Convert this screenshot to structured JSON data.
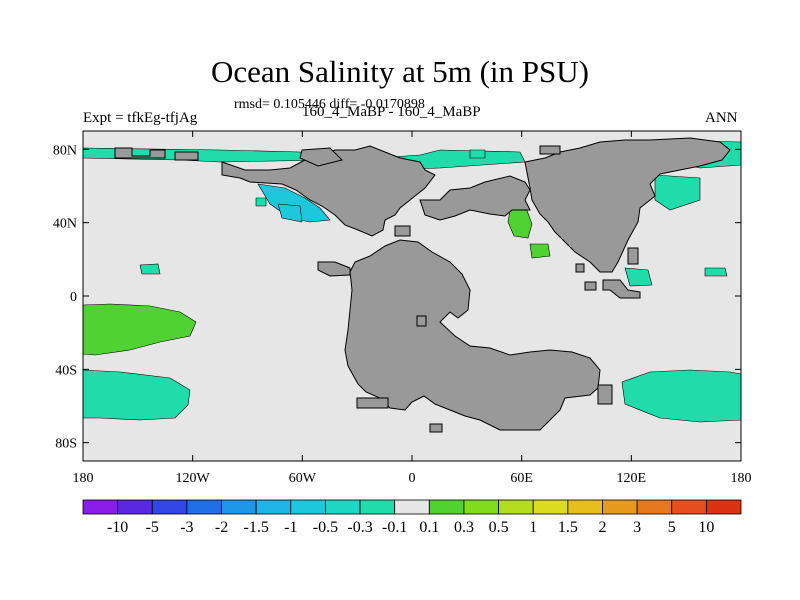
{
  "chart_data": {
    "type": "heatmap",
    "title": "Ocean Salinity at 5m (in PSU)",
    "subtitle": "rmsd= 0.105446 diff= -0.0170898",
    "left_string": "Expt = tfkEg-tfjAg",
    "center_string": "160_4_MaBP - 160_4_MaBP",
    "right_string": "ANN",
    "projection": "cylindrical-equidistant",
    "lon_range": [
      -180,
      180
    ],
    "lat_range": [
      -90,
      90
    ],
    "x_ticks": [
      {
        "value": -180,
        "label": "180"
      },
      {
        "value": -120,
        "label": "120W"
      },
      {
        "value": -60,
        "label": "60W"
      },
      {
        "value": 0,
        "label": "0"
      },
      {
        "value": 60,
        "label": "60E"
      },
      {
        "value": 120,
        "label": "120E"
      },
      {
        "value": 180,
        "label": "180"
      }
    ],
    "y_ticks": [
      {
        "value": 80,
        "label": "80N"
      },
      {
        "value": 40,
        "label": "40N"
      },
      {
        "value": 0,
        "label": "0"
      },
      {
        "value": -40,
        "label": "40S"
      },
      {
        "value": -80,
        "label": "80S"
      }
    ],
    "colorbar": {
      "labels": [
        "-10",
        "-5",
        "-3",
        "-2",
        "-1.5",
        "-1",
        "-0.5",
        "-0.3",
        "-0.1",
        "0.1",
        "0.3",
        "0.5",
        "1",
        "1.5",
        "2",
        "3",
        "5",
        "10"
      ],
      "colors": [
        "#8a1ee6",
        "#5a28e0",
        "#3246e6",
        "#1e6ee6",
        "#1e96e6",
        "#1eb4e6",
        "#1ec8dc",
        "#1ed7c3",
        "#20dcaa",
        "#e6e6e6",
        "#50d232",
        "#82dc1e",
        "#b4dc1e",
        "#dcdc1e",
        "#e6be1e",
        "#e69b1e",
        "#e6781e",
        "#e6501e",
        "#dc3214"
      ]
    },
    "land_color": "#999999",
    "ocean_neutral_color": "#e6e6e6",
    "anomaly_regions": [
      {
        "lon": -160,
        "lat": -20,
        "value": 0.2
      },
      {
        "lon": -150,
        "lat": -55,
        "value": -0.2
      },
      {
        "lon": 148,
        "lat": -55,
        "value": -0.2
      },
      {
        "lon": 25,
        "lat": 85,
        "value": -0.2
      },
      {
        "lon": 140,
        "lat": 83,
        "value": -0.2
      },
      {
        "lon": -80,
        "lat": 45,
        "value": -0.8
      },
      {
        "lon": 45,
        "lat": 45,
        "value": 0.3
      },
      {
        "lon": 10,
        "lat": -15,
        "value": 0.3
      },
      {
        "lon": 5,
        "lat": -48,
        "value": 0.3
      },
      {
        "lon": -135,
        "lat": 15,
        "value": -0.2
      },
      {
        "lon": 155,
        "lat": 15,
        "value": -0.2
      }
    ]
  }
}
